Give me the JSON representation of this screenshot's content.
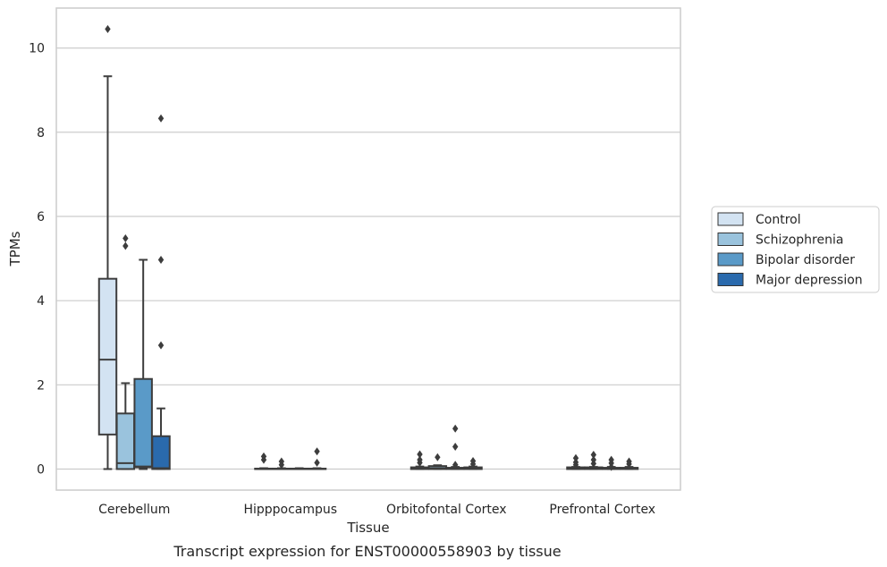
{
  "caption": "Transcript expression for ENST00000558903 by tissue",
  "chart_data": {
    "type": "box",
    "xlabel": "Tissue",
    "ylabel": "TPMs",
    "ylim": [
      -0.5,
      10.95
    ],
    "yticks": [
      0,
      2,
      4,
      6,
      8,
      10
    ],
    "grid": "horizontal",
    "legend_position": "right",
    "categories": [
      "Cerebellum",
      "Hipppocampus",
      "Orbitofontal Cortex",
      "Prefrontal Cortex"
    ],
    "series": [
      {
        "name": "Control",
        "color": "#d3e3f2",
        "boxes": [
          {
            "whislo": 0.0,
            "q1": 0.82,
            "med": 2.6,
            "q3": 4.52,
            "whishi": 9.33,
            "fliers": [
              10.45
            ]
          },
          {
            "whislo": 0.0,
            "q1": 0.0,
            "med": 0.0,
            "q3": 0.01,
            "whishi": 0.02,
            "fliers": [
              0.22,
              0.3
            ]
          },
          {
            "whislo": 0.0,
            "q1": 0.0,
            "med": 0.01,
            "q3": 0.04,
            "whishi": 0.06,
            "fliers": [
              0.15,
              0.22,
              0.35
            ]
          },
          {
            "whislo": 0.0,
            "q1": 0.0,
            "med": 0.01,
            "q3": 0.04,
            "whishi": 0.05,
            "fliers": [
              0.1,
              0.16,
              0.26
            ]
          }
        ]
      },
      {
        "name": "Schizophrenia",
        "color": "#9ac3dd",
        "boxes": [
          {
            "whislo": 0.0,
            "q1": 0.0,
            "med": 0.14,
            "q3": 1.32,
            "whishi": 2.04,
            "fliers": [
              5.3,
              5.48
            ]
          },
          {
            "whislo": 0.0,
            "q1": 0.0,
            "med": 0.0,
            "q3": 0.01,
            "whishi": 0.02,
            "fliers": [
              0.1,
              0.18
            ]
          },
          {
            "whislo": 0.0,
            "q1": 0.0,
            "med": 0.02,
            "q3": 0.07,
            "whishi": 0.09,
            "fliers": [
              0.28
            ]
          },
          {
            "whislo": 0.0,
            "q1": 0.0,
            "med": 0.01,
            "q3": 0.04,
            "whishi": 0.05,
            "fliers": [
              0.13,
              0.22,
              0.34
            ]
          }
        ]
      },
      {
        "name": "Bipolar disorder",
        "color": "#5a9ac8",
        "boxes": [
          {
            "whislo": 0.0,
            "q1": 0.04,
            "med": 0.06,
            "q3": 2.14,
            "whishi": 4.97,
            "fliers": []
          },
          {
            "whislo": 0.0,
            "q1": 0.0,
            "med": 0.0,
            "q3": 0.01,
            "whishi": 0.02,
            "fliers": []
          },
          {
            "whislo": 0.0,
            "q1": 0.0,
            "med": 0.01,
            "q3": 0.03,
            "whishi": 0.05,
            "fliers": [
              0.1,
              0.53,
              0.96
            ]
          },
          {
            "whislo": 0.0,
            "q1": 0.0,
            "med": 0.01,
            "q3": 0.03,
            "whishi": 0.05,
            "fliers": [
              0.05,
              0.14,
              0.22
            ]
          }
        ]
      },
      {
        "name": "Major depression",
        "color": "#2a6aad",
        "boxes": [
          {
            "whislo": 0.0,
            "q1": 0.0,
            "med": 0.02,
            "q3": 0.78,
            "whishi": 1.44,
            "fliers": [
              2.94,
              4.97,
              8.33
            ]
          },
          {
            "whislo": 0.0,
            "q1": 0.0,
            "med": 0.0,
            "q3": 0.01,
            "whishi": 0.02,
            "fliers": [
              0.15,
              0.42
            ]
          },
          {
            "whislo": 0.0,
            "q1": 0.0,
            "med": 0.01,
            "q3": 0.04,
            "whishi": 0.06,
            "fliers": [
              0.12,
              0.19
            ]
          },
          {
            "whislo": 0.0,
            "q1": 0.0,
            "med": 0.01,
            "q3": 0.03,
            "whishi": 0.05,
            "fliers": [
              0.12,
              0.18
            ]
          }
        ]
      }
    ]
  }
}
